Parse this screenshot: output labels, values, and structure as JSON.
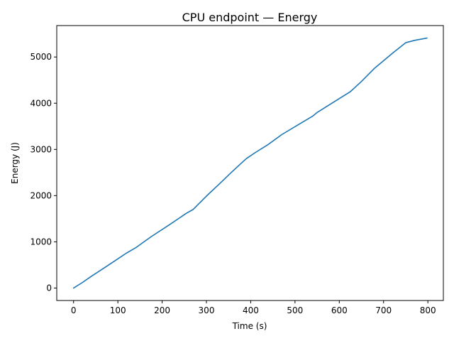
{
  "chart_data": {
    "type": "line",
    "title": "CPU endpoint — Energy",
    "xlabel": "Time (s)",
    "ylabel": "Energy (J)",
    "xlim": [
      -38,
      835
    ],
    "ylim": [
      -270,
      5680
    ],
    "xticks": [
      0,
      100,
      200,
      300,
      400,
      500,
      600,
      700,
      800
    ],
    "yticks": [
      0,
      1000,
      2000,
      3000,
      4000,
      5000
    ],
    "grid": false,
    "line_color": "#1f77b4",
    "series": [
      {
        "x": [
          0,
          20,
          38,
          65,
          95,
          120,
          140,
          175,
          215,
          255,
          270,
          300,
          330,
          355,
          375,
          390,
          410,
          440,
          470,
          510,
          540,
          550,
          580,
          605,
          625,
          650,
          680,
          720,
          750,
          770,
          798
        ],
        "y": [
          0,
          120,
          240,
          410,
          600,
          760,
          870,
          1110,
          1360,
          1620,
          1700,
          1990,
          2260,
          2490,
          2670,
          2800,
          2930,
          3110,
          3320,
          3550,
          3720,
          3800,
          3980,
          4130,
          4250,
          4470,
          4760,
          5080,
          5310,
          5360,
          5410
        ]
      }
    ]
  }
}
